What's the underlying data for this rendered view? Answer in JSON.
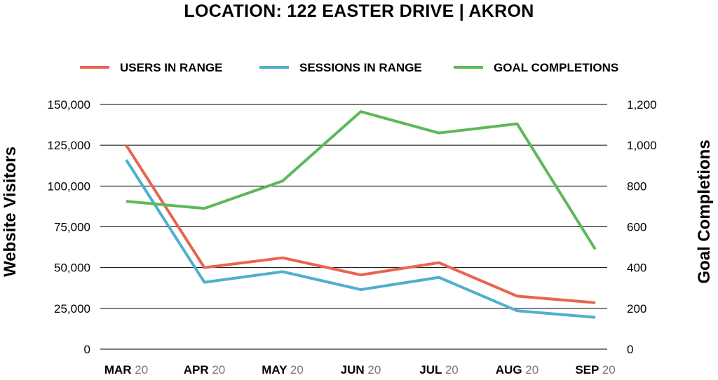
{
  "chart_data": {
    "type": "line",
    "title": "LOCATION: 122 EASTER DRIVE | AKRON",
    "categories": [
      {
        "month": "MAR",
        "year": "20"
      },
      {
        "month": "APR",
        "year": "20"
      },
      {
        "month": "MAY",
        "year": "20"
      },
      {
        "month": "JUN",
        "year": "20"
      },
      {
        "month": "JUL",
        "year": "20"
      },
      {
        "month": "AUG",
        "year": "20"
      },
      {
        "month": "SEP",
        "year": "20"
      }
    ],
    "y_left": {
      "label": "Website Visitors",
      "lim": [
        0,
        150000
      ],
      "ticks": [
        0,
        25000,
        50000,
        75000,
        100000,
        125000,
        150000
      ],
      "tick_labels": [
        "0",
        "25,000",
        "50,000",
        "75,000",
        "100,000",
        "125,000",
        "150,000"
      ]
    },
    "y_right": {
      "label": "Goal Completions",
      "lim": [
        0,
        1200
      ],
      "ticks": [
        0,
        200,
        400,
        600,
        800,
        1000,
        1200
      ],
      "tick_labels": [
        "0",
        "200",
        "400",
        "600",
        "800",
        "1,000",
        "1,200"
      ]
    },
    "grid": true,
    "legend_position": "top",
    "series": [
      {
        "name": "USERS IN RANGE",
        "axis": "left",
        "color": "#e8654f",
        "values": [
          125000,
          50000,
          56000,
          45500,
          53000,
          32500,
          28500
        ]
      },
      {
        "name": "SESSIONS IN RANGE",
        "axis": "left",
        "color": "#4fb0cc",
        "values": [
          116000,
          41000,
          47500,
          36500,
          44000,
          23500,
          19500
        ]
      },
      {
        "name": "GOAL COMPLETIONS",
        "axis": "right",
        "color": "#5db85b",
        "values": [
          725,
          690,
          825,
          1165,
          1060,
          1105,
          490
        ]
      }
    ]
  }
}
